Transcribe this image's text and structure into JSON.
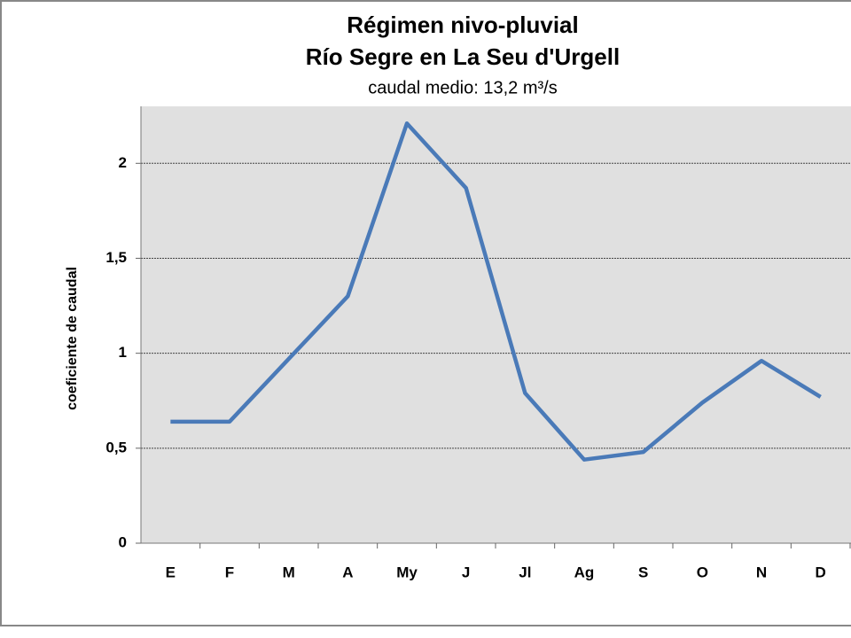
{
  "chart_data": {
    "type": "line",
    "title": "Régimen nivo-pluvial",
    "subtitle_1": "Río Segre en La Seu d'Urgell",
    "subtitle_2": "caudal medio:  13,2 m³/s",
    "y_label": "coeficiente de caudal",
    "categories": [
      "E",
      "F",
      "M",
      "A",
      "My",
      "J",
      "Jl",
      "Ag",
      "S",
      "O",
      "N",
      "D"
    ],
    "series": [
      {
        "name": "coeficiente de caudal",
        "color": "#4a7ab8",
        "values": [
          0.64,
          0.64,
          0.97,
          1.3,
          2.21,
          1.87,
          0.79,
          0.44,
          0.48,
          0.74,
          0.96,
          0.77
        ]
      }
    ],
    "ylim": [
      0,
      2.3
    ],
    "yticks": [
      0,
      {
        "value": 0.5,
        "label": "0,5"
      },
      1,
      {
        "value": 1.5,
        "label": "1,5"
      },
      2
    ],
    "grid": true
  }
}
